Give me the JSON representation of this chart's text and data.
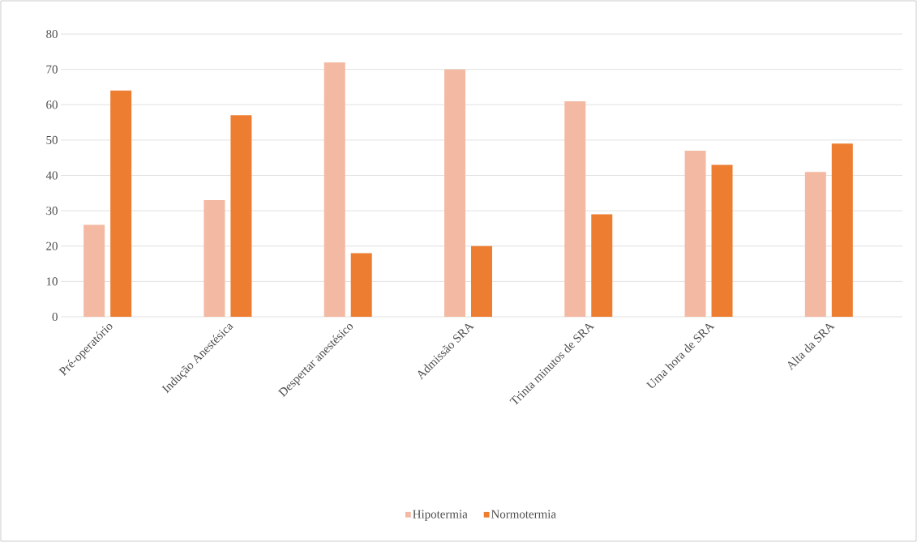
{
  "chart_data": {
    "type": "bar",
    "categories": [
      "Pré-operatório",
      "Indução Anestésica",
      "Despertar anestésico",
      "Admissão SRA",
      "Trinta minutos de SRA",
      "Uma hora de SRA",
      "Alta da SRA"
    ],
    "series": [
      {
        "name": "Hipotermia",
        "color": "#f4b9a2",
        "values": [
          26,
          33,
          72,
          70,
          61,
          47,
          41
        ]
      },
      {
        "name": "Normotermia",
        "color": "#ed7d31",
        "values": [
          64,
          57,
          18,
          20,
          29,
          43,
          49
        ]
      }
    ],
    "ylim": [
      0,
      80
    ],
    "yticks": [
      0,
      10,
      20,
      30,
      40,
      50,
      60,
      70,
      80
    ],
    "grid": "y",
    "legend": "bottom"
  }
}
